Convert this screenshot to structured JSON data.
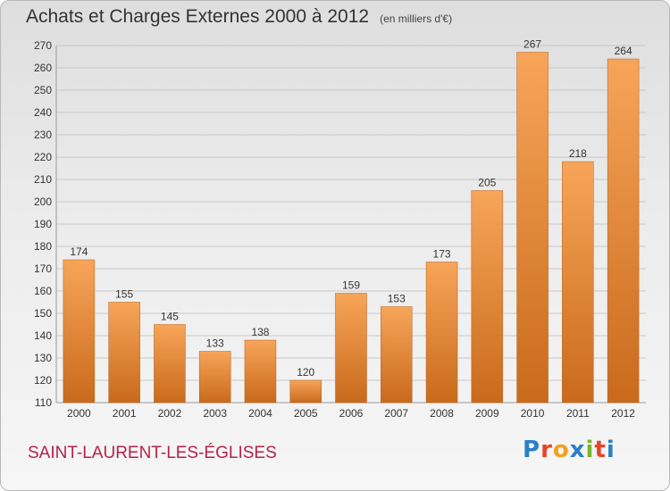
{
  "header": {
    "title": "Achats et Charges Externes 2000 à 2012",
    "unit": "(en milliers d'€)"
  },
  "footer": {
    "commune": "SAINT-LAURENT-LES-ÉGLISES",
    "logo": "Proxiti",
    "logo_colors": [
      "#2b7fc7",
      "#e8442a",
      "#f2a01e",
      "#2b7fc7",
      "#7bb32e",
      "#e8442a",
      "#2b7fc7"
    ]
  },
  "colors": {
    "bar_light": "#f7a55a",
    "bar_dark": "#c96a1c",
    "grid": "#c8c8c8",
    "text": "#333333"
  },
  "chart_data": {
    "type": "bar",
    "categories": [
      "2000",
      "2001",
      "2002",
      "2003",
      "2004",
      "2005",
      "2006",
      "2007",
      "2008",
      "2009",
      "2010",
      "2011",
      "2012"
    ],
    "values": [
      174,
      155,
      145,
      133,
      138,
      120,
      159,
      153,
      173,
      205,
      267,
      218,
      264
    ],
    "title": "Achats et Charges Externes 2000 à 2012",
    "ylim": [
      110,
      270
    ],
    "yticks": [
      110,
      120,
      130,
      140,
      150,
      160,
      170,
      180,
      190,
      200,
      210,
      220,
      230,
      240,
      250,
      260,
      270
    ],
    "grid": true
  }
}
